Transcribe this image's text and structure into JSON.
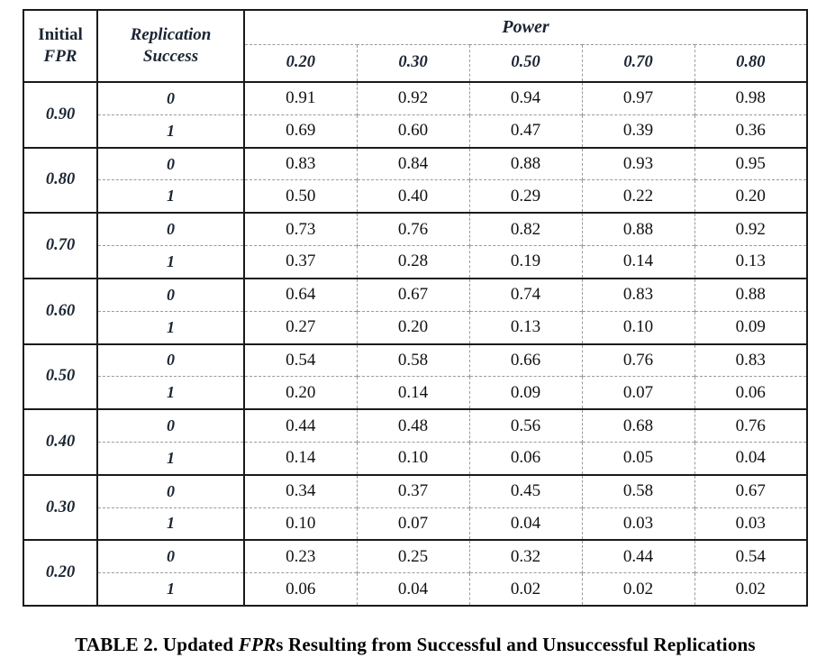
{
  "table": {
    "header": {
      "initial_line1": "Initial",
      "initial_line2": "FPR",
      "replication_line1": "Replication",
      "replication_line2": "Success",
      "power_label": "Power",
      "power_levels": [
        "0.20",
        "0.30",
        "0.50",
        "0.70",
        "0.80"
      ]
    },
    "success_labels": [
      "0",
      "1"
    ],
    "rows": [
      {
        "initial_fpr": "0.90",
        "success0": [
          "0.91",
          "0.92",
          "0.94",
          "0.97",
          "0.98"
        ],
        "success1": [
          "0.69",
          "0.60",
          "0.47",
          "0.39",
          "0.36"
        ]
      },
      {
        "initial_fpr": "0.80",
        "success0": [
          "0.83",
          "0.84",
          "0.88",
          "0.93",
          "0.95"
        ],
        "success1": [
          "0.50",
          "0.40",
          "0.29",
          "0.22",
          "0.20"
        ]
      },
      {
        "initial_fpr": "0.70",
        "success0": [
          "0.73",
          "0.76",
          "0.82",
          "0.88",
          "0.92"
        ],
        "success1": [
          "0.37",
          "0.28",
          "0.19",
          "0.14",
          "0.13"
        ]
      },
      {
        "initial_fpr": "0.60",
        "success0": [
          "0.64",
          "0.67",
          "0.74",
          "0.83",
          "0.88"
        ],
        "success1": [
          "0.27",
          "0.20",
          "0.13",
          "0.10",
          "0.09"
        ]
      },
      {
        "initial_fpr": "0.50",
        "success0": [
          "0.54",
          "0.58",
          "0.66",
          "0.76",
          "0.83"
        ],
        "success1": [
          "0.20",
          "0.14",
          "0.09",
          "0.07",
          "0.06"
        ]
      },
      {
        "initial_fpr": "0.40",
        "success0": [
          "0.44",
          "0.48",
          "0.56",
          "0.68",
          "0.76"
        ],
        "success1": [
          "0.14",
          "0.10",
          "0.06",
          "0.05",
          "0.04"
        ]
      },
      {
        "initial_fpr": "0.30",
        "success0": [
          "0.34",
          "0.37",
          "0.45",
          "0.58",
          "0.67"
        ],
        "success1": [
          "0.10",
          "0.07",
          "0.04",
          "0.03",
          "0.03"
        ]
      },
      {
        "initial_fpr": "0.20",
        "success0": [
          "0.23",
          "0.25",
          "0.32",
          "0.44",
          "0.54"
        ],
        "success1": [
          "0.06",
          "0.04",
          "0.02",
          "0.02",
          "0.02"
        ]
      }
    ]
  },
  "caption": {
    "prefix": "TABLE 2. Updated ",
    "italic": "FPR",
    "suffix": "s Resulting from Successful and Unsuccessful Replications"
  },
  "colors": {
    "header_text": "#1b2533",
    "data_text": "#111111",
    "solid_border": "#1a1a1a",
    "dashed_border": "#9a9a9a",
    "background": "#ffffff"
  }
}
